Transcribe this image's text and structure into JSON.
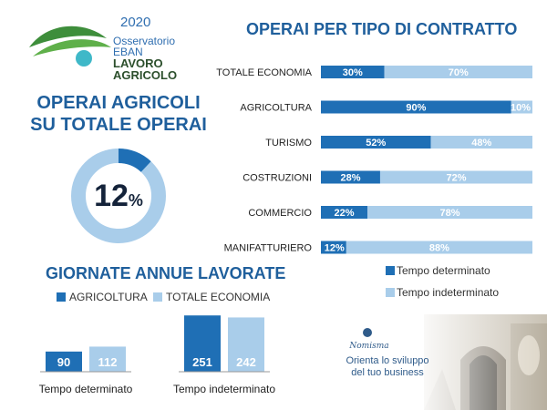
{
  "logo": {
    "year": "2020",
    "line1": "Osservatorio",
    "line2": "EBAN",
    "line3": "LAVORO",
    "line4": "AGRICOLO"
  },
  "donut": {
    "title_line1": "OPERAI AGRICOLI",
    "title_line2": "SU TOTALE OPERAI",
    "value_num": "12",
    "value_unit": "%",
    "fraction": 0.12,
    "colors": {
      "fill": "#1f6fb5",
      "rest": "#a9cdea"
    }
  },
  "giornate": {
    "title": "GIORNATE ANNUE LAVORATE",
    "legend": [
      "AGRICOLTURA",
      "TOTALE ECONOMIA"
    ]
  },
  "contratto": {
    "title": "OPERAI PER TIPO DI CONTRATTO",
    "legend": [
      "Tempo determinato",
      "Tempo indeterminato"
    ]
  },
  "colors": {
    "dark": "#1f6fb5",
    "light": "#a9cdea"
  },
  "footer": {
    "brand": "Nomisma",
    "tagline_line1": "Orienta lo sviluppo",
    "tagline_line2": "del tuo business"
  },
  "chart_data": [
    {
      "type": "bar",
      "title": "GIORNATE ANNUE LAVORATE",
      "categories": [
        "Tempo determinato",
        "Tempo indeterminato"
      ],
      "series": [
        {
          "name": "AGRICOLTURA",
          "values": [
            90,
            251
          ]
        },
        {
          "name": "TOTALE ECONOMIA",
          "values": [
            112,
            242
          ]
        }
      ],
      "ylim": [
        0,
        260
      ]
    },
    {
      "type": "bar",
      "stacked": true,
      "orientation": "horizontal",
      "title": "OPERAI PER TIPO DI CONTRATTO",
      "categories": [
        "TOTALE ECONOMIA",
        "AGRICOLTURA",
        "TURISMO",
        "COSTRUZIONI",
        "COMMERCIO",
        "MANIFATTURIERO"
      ],
      "series": [
        {
          "name": "Tempo determinato",
          "values": [
            30,
            90,
            52,
            28,
            22,
            12
          ]
        },
        {
          "name": "Tempo indeterminato",
          "values": [
            70,
            10,
            48,
            72,
            78,
            88
          ]
        }
      ],
      "value_suffix": "%",
      "xlim": [
        0,
        100
      ]
    }
  ]
}
